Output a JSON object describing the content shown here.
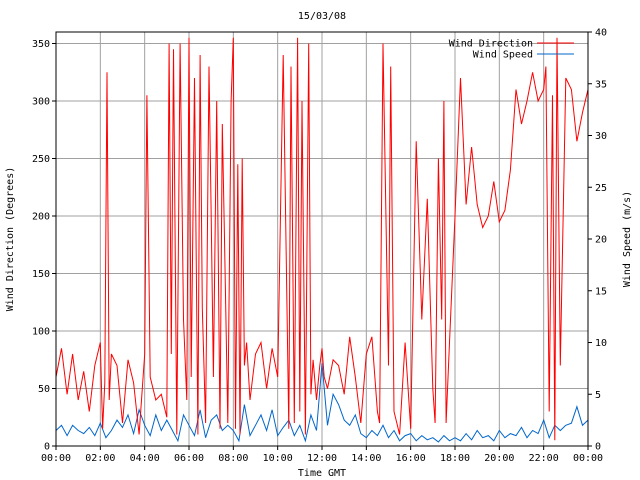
{
  "chart_data": {
    "type": "line",
    "title": "15/03/08",
    "xlabel": "Time GMT",
    "ylabel_left": "Wind Direction (Degrees)",
    "ylabel_right": "Wind Speed (m/s)",
    "x_ticks": [
      "00:00",
      "02:00",
      "04:00",
      "06:00",
      "08:00",
      "10:00",
      "12:00",
      "14:00",
      "16:00",
      "18:00",
      "20:00",
      "22:00",
      "00:00"
    ],
    "y_left_ticks": [
      "0",
      "50",
      "100",
      "150",
      "200",
      "250",
      "300",
      "350"
    ],
    "y_right_ticks": [
      "0",
      "5",
      "10",
      "15",
      "20",
      "25",
      "30",
      "35",
      "40"
    ],
    "xlim_hours": [
      0,
      24
    ],
    "ylim_left": [
      0,
      360
    ],
    "ylim_right": [
      0,
      40
    ],
    "grid": true,
    "legend_position": "top-right",
    "colors": {
      "direction": "#ff0000",
      "speed": "#0066cc"
    },
    "series": [
      {
        "name": "Wind Direction",
        "axis": "left",
        "hours": [
          0.0,
          0.25,
          0.5,
          0.75,
          1.0,
          1.25,
          1.5,
          1.75,
          2.0,
          2.1,
          2.2,
          2.3,
          2.4,
          2.5,
          2.75,
          3.0,
          3.25,
          3.5,
          3.75,
          4.0,
          4.1,
          4.25,
          4.5,
          4.75,
          5.0,
          5.1,
          5.2,
          5.3,
          5.45,
          5.6,
          5.75,
          5.9,
          6.0,
          6.1,
          6.25,
          6.4,
          6.5,
          6.6,
          6.75,
          6.9,
          7.0,
          7.1,
          7.25,
          7.4,
          7.5,
          7.6,
          7.75,
          7.9,
          8.0,
          8.1,
          8.2,
          8.3,
          8.4,
          8.5,
          8.6,
          8.75,
          9.0,
          9.25,
          9.5,
          9.75,
          10.0,
          10.25,
          10.5,
          10.6,
          10.75,
          10.9,
          11.0,
          11.1,
          11.25,
          11.4,
          11.5,
          11.6,
          11.75,
          11.9,
          12.0,
          12.1,
          12.25,
          12.5,
          12.75,
          13.0,
          13.25,
          13.5,
          13.75,
          14.0,
          14.25,
          14.5,
          14.6,
          14.75,
          15.0,
          15.1,
          15.25,
          15.5,
          15.75,
          16.0,
          16.25,
          16.5,
          16.75,
          17.0,
          17.1,
          17.25,
          17.4,
          17.5,
          17.6,
          17.75,
          18.0,
          18.25,
          18.5,
          18.75,
          19.0,
          19.25,
          19.5,
          19.75,
          20.0,
          20.25,
          20.5,
          20.75,
          21.0,
          21.25,
          21.5,
          21.75,
          22.0,
          22.1,
          22.25,
          22.4,
          22.5,
          22.6,
          22.75,
          23.0,
          23.25,
          23.5,
          23.75,
          24.0
        ],
        "values": [
          60,
          85,
          45,
          80,
          40,
          65,
          30,
          70,
          90,
          15,
          55,
          325,
          40,
          80,
          70,
          20,
          75,
          55,
          10,
          80,
          305,
          60,
          40,
          45,
          25,
          350,
          80,
          345,
          10,
          350,
          110,
          40,
          355,
          60,
          320,
          10,
          340,
          120,
          20,
          330,
          200,
          60,
          300,
          15,
          280,
          180,
          20,
          300,
          355,
          15,
          245,
          10,
          250,
          70,
          90,
          40,
          80,
          90,
          50,
          85,
          60,
          340,
          15,
          330,
          20,
          355,
          30,
          300,
          10,
          350,
          45,
          75,
          40,
          70,
          85,
          60,
          50,
          75,
          70,
          45,
          95,
          60,
          20,
          80,
          95,
          30,
          20,
          350,
          70,
          330,
          30,
          10,
          90,
          15,
          265,
          110,
          215,
          50,
          20,
          250,
          110,
          300,
          20,
          90,
          200,
          320,
          210,
          260,
          210,
          190,
          200,
          230,
          195,
          205,
          240,
          310,
          280,
          300,
          325,
          300,
          310,
          330,
          30,
          305,
          5,
          355,
          70,
          320,
          310,
          265,
          290,
          310
        ]
      },
      {
        "name": "Wind Speed",
        "axis": "right",
        "hours": [
          0.0,
          0.25,
          0.5,
          0.75,
          1.0,
          1.25,
          1.5,
          1.75,
          2.0,
          2.25,
          2.5,
          2.75,
          3.0,
          3.25,
          3.5,
          3.75,
          4.0,
          4.25,
          4.5,
          4.75,
          5.0,
          5.25,
          5.5,
          5.75,
          6.0,
          6.25,
          6.5,
          6.75,
          7.0,
          7.25,
          7.5,
          7.75,
          8.0,
          8.25,
          8.5,
          8.75,
          9.0,
          9.25,
          9.5,
          9.75,
          10.0,
          10.25,
          10.5,
          10.75,
          11.0,
          11.25,
          11.5,
          11.75,
          12.0,
          12.25,
          12.5,
          12.75,
          13.0,
          13.25,
          13.5,
          13.75,
          14.0,
          14.25,
          14.5,
          14.75,
          15.0,
          15.25,
          15.5,
          15.75,
          16.0,
          16.25,
          16.5,
          16.75,
          17.0,
          17.25,
          17.5,
          17.75,
          18.0,
          18.25,
          18.5,
          18.75,
          19.0,
          19.25,
          19.5,
          19.75,
          20.0,
          20.25,
          20.5,
          20.75,
          21.0,
          21.25,
          21.5,
          21.75,
          22.0,
          22.25,
          22.5,
          22.75,
          23.0,
          23.25,
          23.5,
          23.75,
          24.0
        ],
        "values": [
          1.5,
          2.0,
          1.0,
          2.0,
          1.5,
          1.2,
          1.8,
          1.0,
          2.2,
          0.8,
          1.5,
          2.5,
          1.8,
          3.0,
          1.2,
          3.5,
          2.0,
          1.0,
          3.0,
          1.5,
          2.5,
          1.5,
          0.5,
          3.0,
          2.0,
          1.0,
          3.5,
          0.8,
          2.5,
          3.0,
          1.5,
          2.0,
          1.5,
          0.5,
          4.0,
          1.0,
          2.0,
          3.0,
          1.5,
          3.5,
          1.0,
          1.8,
          2.5,
          1.0,
          2.0,
          0.5,
          3.0,
          1.5,
          8.0,
          2.0,
          5.0,
          4.0,
          2.5,
          2.0,
          3.0,
          1.2,
          0.8,
          1.5,
          1.0,
          2.0,
          0.8,
          1.5,
          0.5,
          1.0,
          1.2,
          0.5,
          1.0,
          0.6,
          0.8,
          0.4,
          1.0,
          0.5,
          0.8,
          0.5,
          1.2,
          0.6,
          1.5,
          0.8,
          1.0,
          0.5,
          1.5,
          0.8,
          1.2,
          1.0,
          1.8,
          0.8,
          1.5,
          1.2,
          2.5,
          0.8,
          2.0,
          1.5,
          2.0,
          2.2,
          3.8,
          2.0,
          2.5
        ]
      }
    ]
  }
}
